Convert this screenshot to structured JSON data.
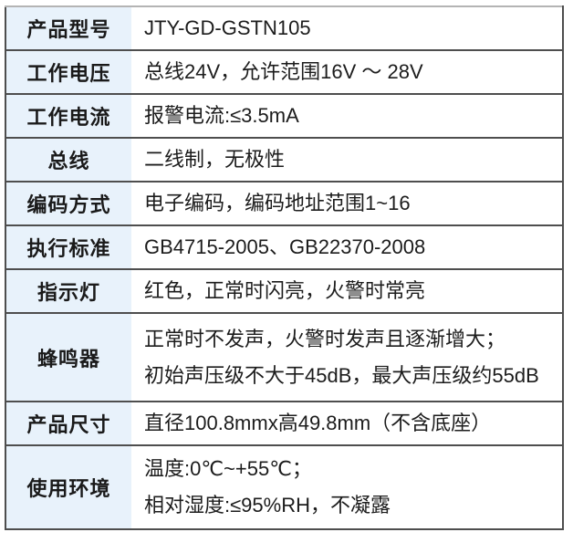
{
  "table": {
    "name": "product-specification-table",
    "rows": [
      {
        "label": "产品型号",
        "lines": [
          "JTY-GD-GSTN105"
        ]
      },
      {
        "label": "工作电压",
        "lines": [
          "总线24V，允许范围16V ～ 28V"
        ]
      },
      {
        "label": "工作电流",
        "lines": [
          "报警电流:≤3.5mA"
        ]
      },
      {
        "label": "总线",
        "lines": [
          "二线制，无极性"
        ]
      },
      {
        "label": "编码方式",
        "lines": [
          "电子编码，编码地址范围1~16"
        ]
      },
      {
        "label": "执行标准",
        "lines": [
          "GB4715-2005、GB22370-2008"
        ]
      },
      {
        "label": "指示灯",
        "lines": [
          "红色，正常时闪亮，火警时常亮"
        ]
      },
      {
        "label": "蜂鸣器",
        "lines": [
          "正常时不发声，火警时发声且逐渐增大；",
          "初始声压级不大于45dB，最大声压级约55dB"
        ]
      },
      {
        "label": "产品尺寸",
        "lines": [
          "直径100.8mmx高49.8mm（不含底座）"
        ]
      },
      {
        "label": "使用环境",
        "lines": [
          "温度:0℃~+55℃；",
          "相对湿度:≤95%RH，不凝露"
        ]
      }
    ]
  },
  "colors": {
    "label_background": "#e8f2fb",
    "value_background": "#ffffff",
    "border": "#4e4e4e",
    "border_top": "#b4b4b4",
    "text": "#1a1a1a"
  }
}
